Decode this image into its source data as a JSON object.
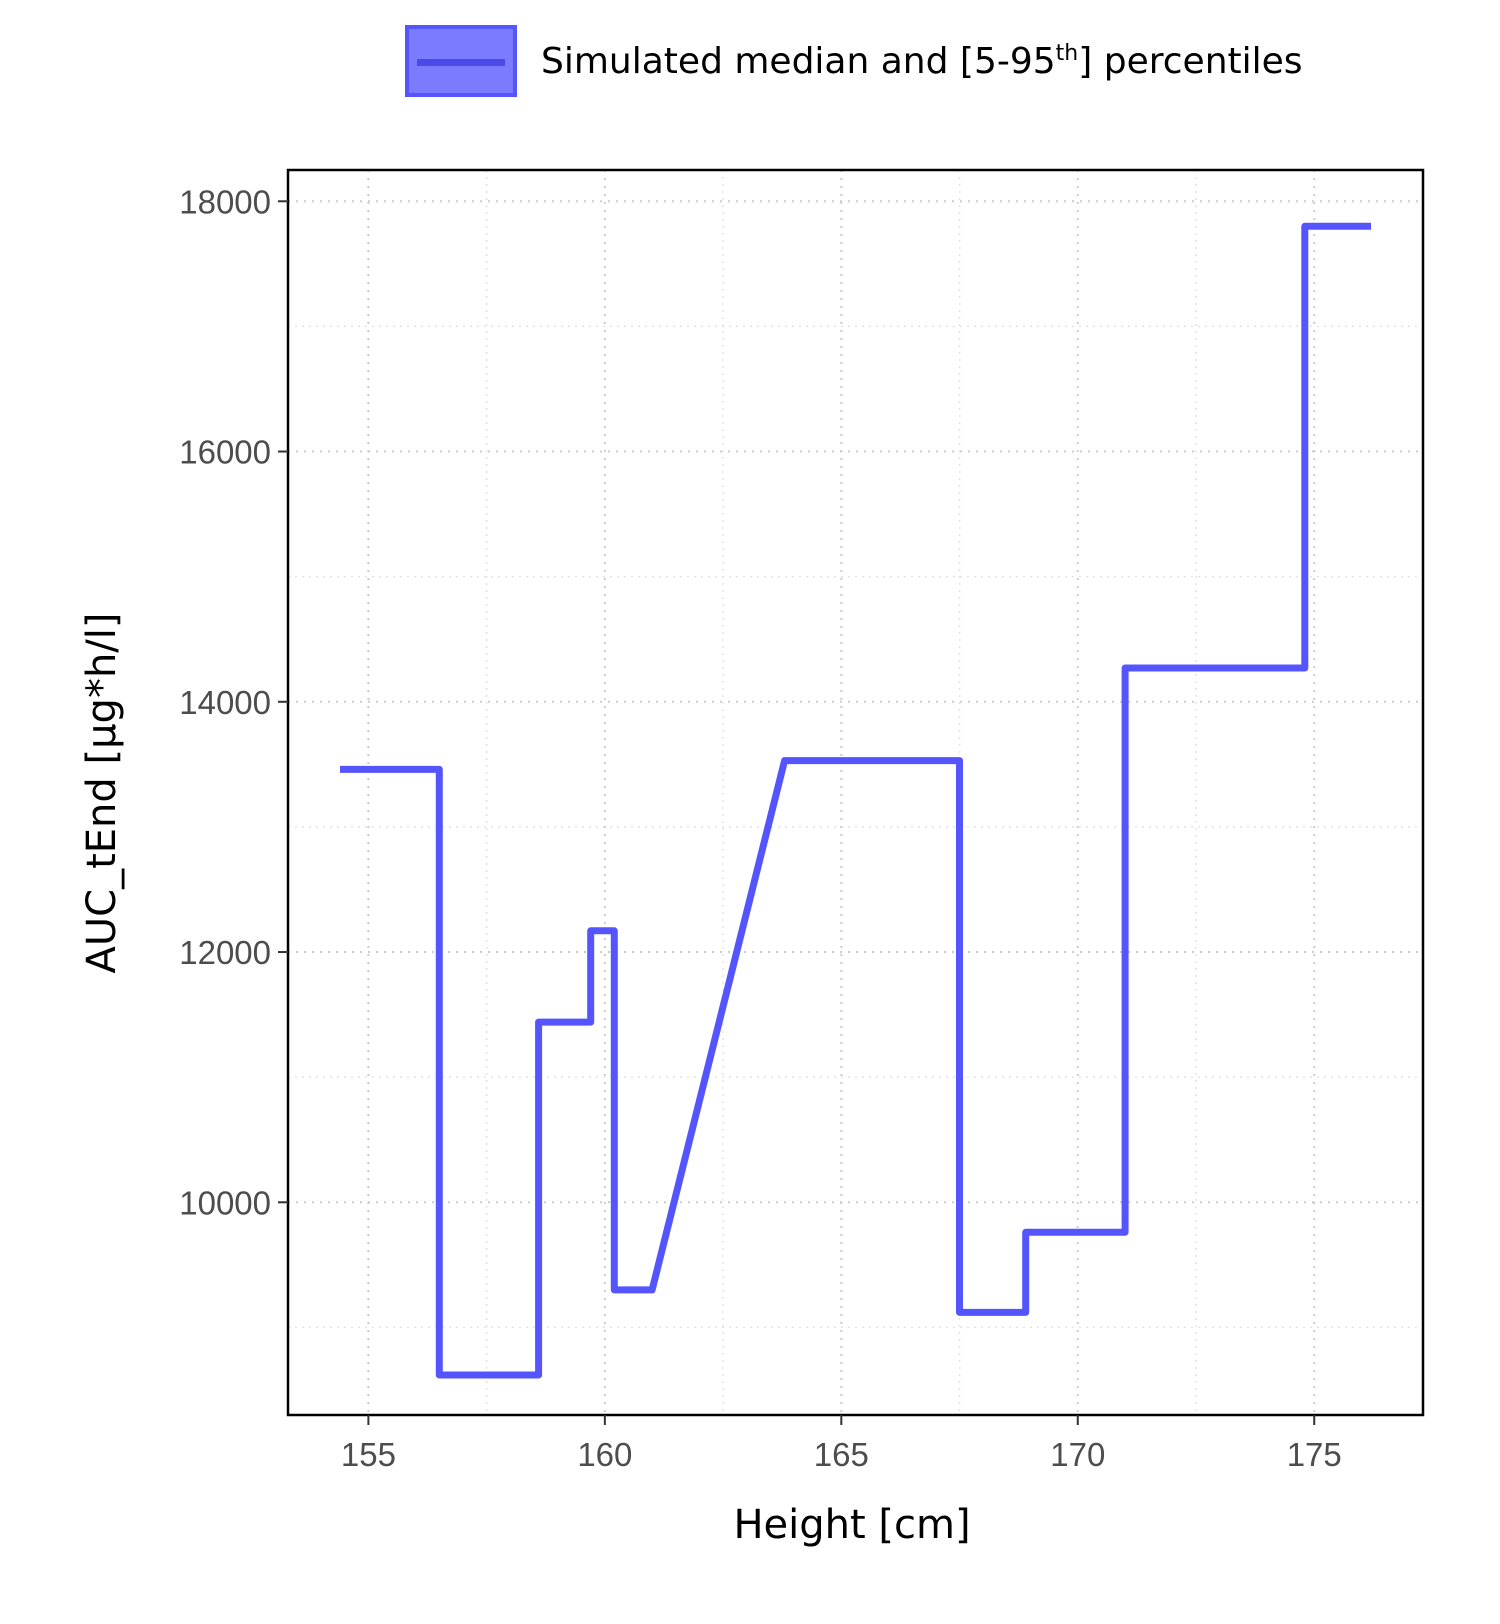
{
  "legend": {
    "label_main": "Simulated median and [5-95",
    "label_sup": "th",
    "label_tail": "] percentiles"
  },
  "colors": {
    "line": "#5555ff",
    "band_fill": "#7b7bff",
    "grid": "#cccccc",
    "axis": "#000000"
  },
  "chart_data": {
    "type": "line",
    "title": "",
    "xlabel": "Height [cm]",
    "ylabel": "AUC_tEnd [µg*h/l]",
    "xlim": [
      153.3,
      177.3
    ],
    "ylim": [
      8300,
      18250
    ],
    "xticks": [
      155,
      160,
      165,
      170,
      175
    ],
    "yticks": [
      10000,
      12000,
      14000,
      16000,
      18000
    ],
    "xminor": [
      157.5,
      162.5,
      167.5,
      172.5
    ],
    "yminor": [
      9000,
      11000,
      13000,
      15000,
      17000
    ],
    "grid": true,
    "legend_position": "top",
    "series": [
      {
        "name": "Simulated median and [5-95th] percentiles",
        "x": [
          154.4,
          156.5,
          156.5,
          158.6,
          158.6,
          159.7,
          159.7,
          160.2,
          160.2,
          161.0,
          163.8,
          167.5,
          167.5,
          168.9,
          168.9,
          171.0,
          171.0,
          174.8,
          174.8,
          176.2
        ],
        "y": [
          13460,
          13460,
          8620,
          8620,
          11440,
          11440,
          12170,
          12170,
          9300,
          9300,
          13530,
          13530,
          9120,
          9120,
          9760,
          9760,
          14270,
          14270,
          17800,
          17800
        ]
      }
    ]
  }
}
